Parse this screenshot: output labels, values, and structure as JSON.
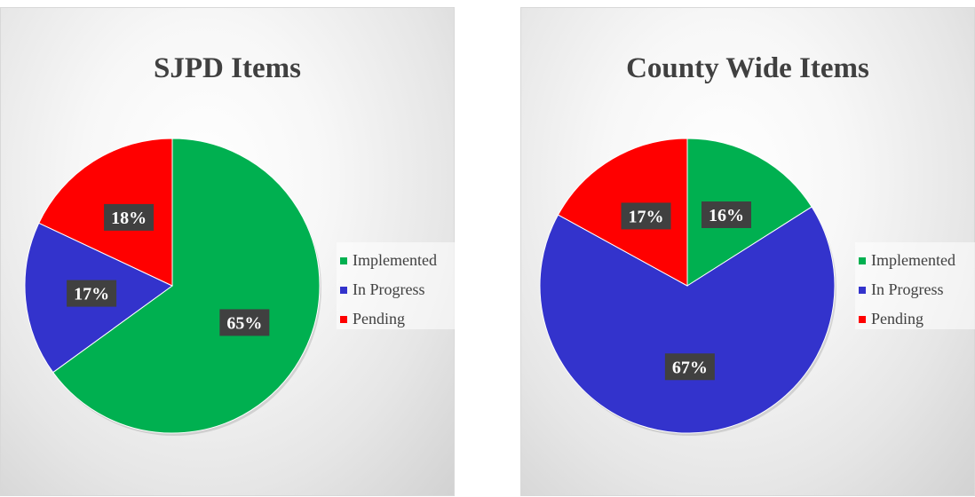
{
  "chart_data": [
    {
      "type": "pie",
      "title": "SJPD Items",
      "categories": [
        "Implemented",
        "In Progress",
        "Pending"
      ],
      "values": [
        65,
        17,
        18
      ],
      "labels": [
        "65%",
        "17%",
        "18%"
      ],
      "colors": [
        "#00b050",
        "#3333cc",
        "#ff0000"
      ],
      "legend": "right"
    },
    {
      "type": "pie",
      "title": "County Wide Items",
      "categories": [
        "Implemented",
        "In Progress",
        "Pending"
      ],
      "values": [
        16,
        67,
        17
      ],
      "labels": [
        "16%",
        "67%",
        "17%"
      ],
      "colors": [
        "#00b050",
        "#3333cc",
        "#ff0000"
      ],
      "legend": "right"
    }
  ]
}
